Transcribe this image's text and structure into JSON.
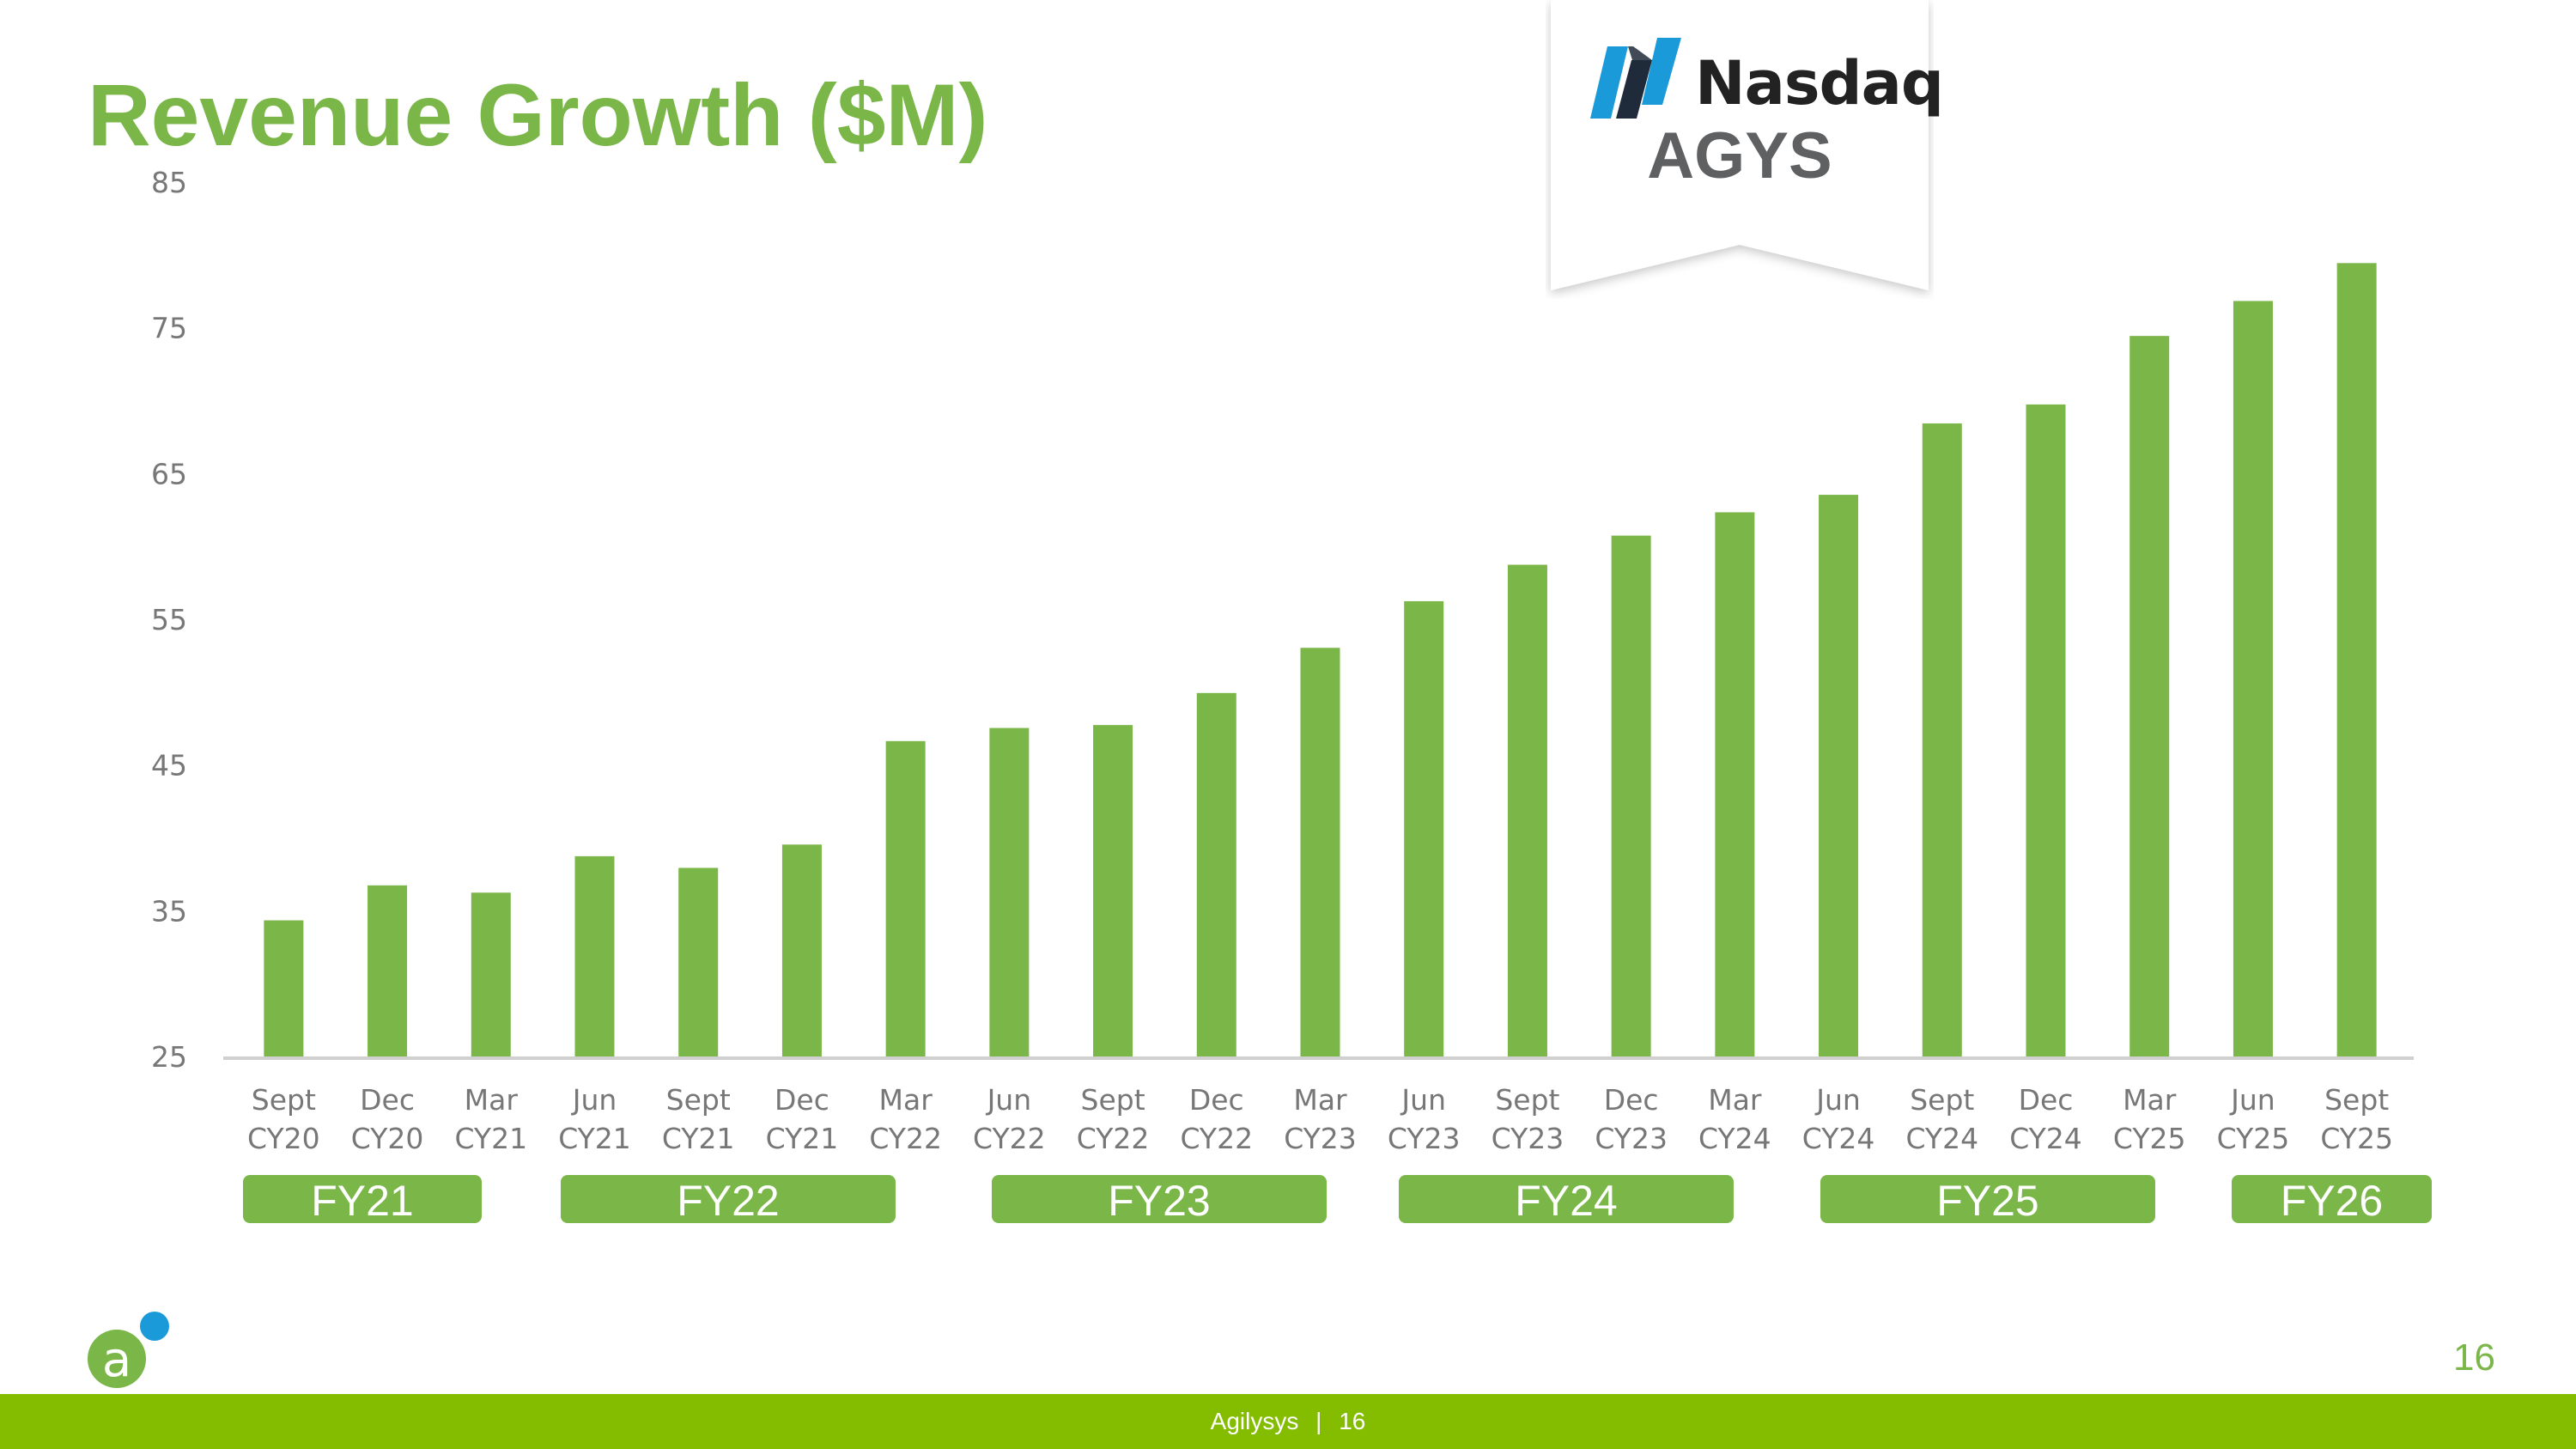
{
  "slide": {
    "title": "Revenue Growth ($M)",
    "page_number": "16",
    "footer_company": "Agilysys",
    "footer_separator": "|",
    "footer_page": "16"
  },
  "badge": {
    "exchange": "Nasdaq",
    "ticker": "AGYS",
    "exchange_icon": "nasdaq-logo-icon"
  },
  "logo": {
    "icon": "agilysys-logo-icon",
    "letter": "a"
  },
  "colors": {
    "accent": "#7ab648",
    "bar": "#7ab648",
    "footer": "#84bd00",
    "logo_dot": "#1a9ad9",
    "nasdaq_blue": "#1a9ad9"
  },
  "fiscal_years": [
    "FY21",
    "FY22",
    "FY23",
    "FY24",
    "FY25",
    "FY26"
  ],
  "chart_data": {
    "type": "bar",
    "title": "Revenue Growth ($M)",
    "xlabel": "",
    "ylabel": "",
    "ylim": [
      25,
      85
    ],
    "yticks": [
      85,
      75,
      65,
      55,
      45,
      35,
      25
    ],
    "grid": false,
    "categories": [
      [
        "Sept",
        "CY20"
      ],
      [
        "Dec",
        "CY20"
      ],
      [
        "Mar",
        "CY21"
      ],
      [
        "Jun",
        "CY21"
      ],
      [
        "Sept",
        "CY21"
      ],
      [
        "Dec",
        "CY21"
      ],
      [
        "Mar",
        "CY22"
      ],
      [
        "Jun",
        "CY22"
      ],
      [
        "Sept",
        "CY22"
      ],
      [
        "Dec",
        "CY22"
      ],
      [
        "Mar",
        "CY23"
      ],
      [
        "Jun",
        "CY23"
      ],
      [
        "Sept",
        "CY23"
      ],
      [
        "Dec",
        "CY23"
      ],
      [
        "Mar",
        "CY24"
      ],
      [
        "Jun",
        "CY24"
      ],
      [
        "Sept",
        "CY24"
      ],
      [
        "Dec",
        "CY24"
      ],
      [
        "Mar",
        "CY25"
      ],
      [
        "Jun",
        "CY25"
      ],
      [
        "Sept",
        "CY25"
      ]
    ],
    "values": [
      34.4,
      36.8,
      36.3,
      38.8,
      38.0,
      39.6,
      46.7,
      47.6,
      47.8,
      50.0,
      53.1,
      56.3,
      58.8,
      60.8,
      62.4,
      63.6,
      68.5,
      69.8,
      74.5,
      76.9,
      79.5
    ]
  }
}
